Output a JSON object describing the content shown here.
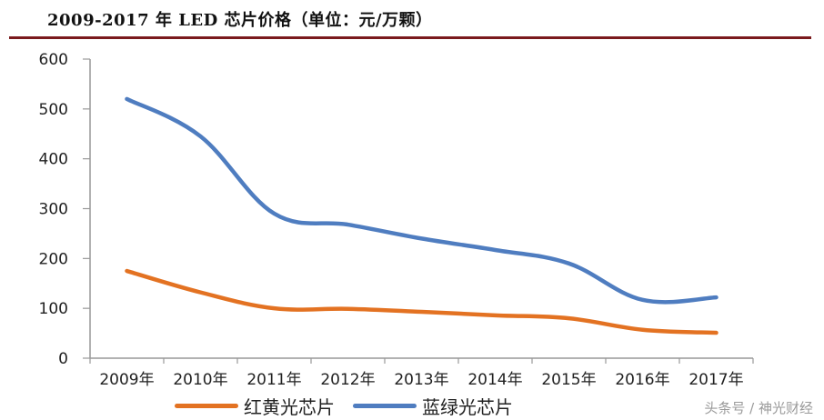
{
  "title": "2009-2017 年 LED 芯片价格（单位：元/万颗）",
  "watermark": "头条号 / 神光财经",
  "colors": {
    "title_rule": "#7a1a1d",
    "red_yellow": "#e37222",
    "blue_green": "#4f7dc0",
    "axis": "#999999"
  },
  "chart_data": {
    "type": "line",
    "title": "2009-2017 年 LED 芯片价格（单位：元/万颗）",
    "xlabel": "",
    "ylabel": "元/万颗",
    "categories": [
      "2009年",
      "2010年",
      "2011年",
      "2012年",
      "2013年",
      "2014年",
      "2015年",
      "2016年",
      "2017年"
    ],
    "series": [
      {
        "name": "红黄光芯片",
        "color": "#e37222",
        "values": [
          175,
          132,
          100,
          99,
          93,
          86,
          80,
          57,
          51
        ]
      },
      {
        "name": "蓝绿光芯片",
        "color": "#4f7dc0",
        "values": [
          520,
          445,
          290,
          268,
          240,
          217,
          190,
          117,
          122
        ]
      }
    ],
    "ylim": [
      0,
      600
    ],
    "yticks": [
      "0",
      "100",
      "200",
      "300",
      "400",
      "500",
      "600"
    ],
    "grid": false,
    "legend_position": "bottom",
    "smooth": true
  }
}
